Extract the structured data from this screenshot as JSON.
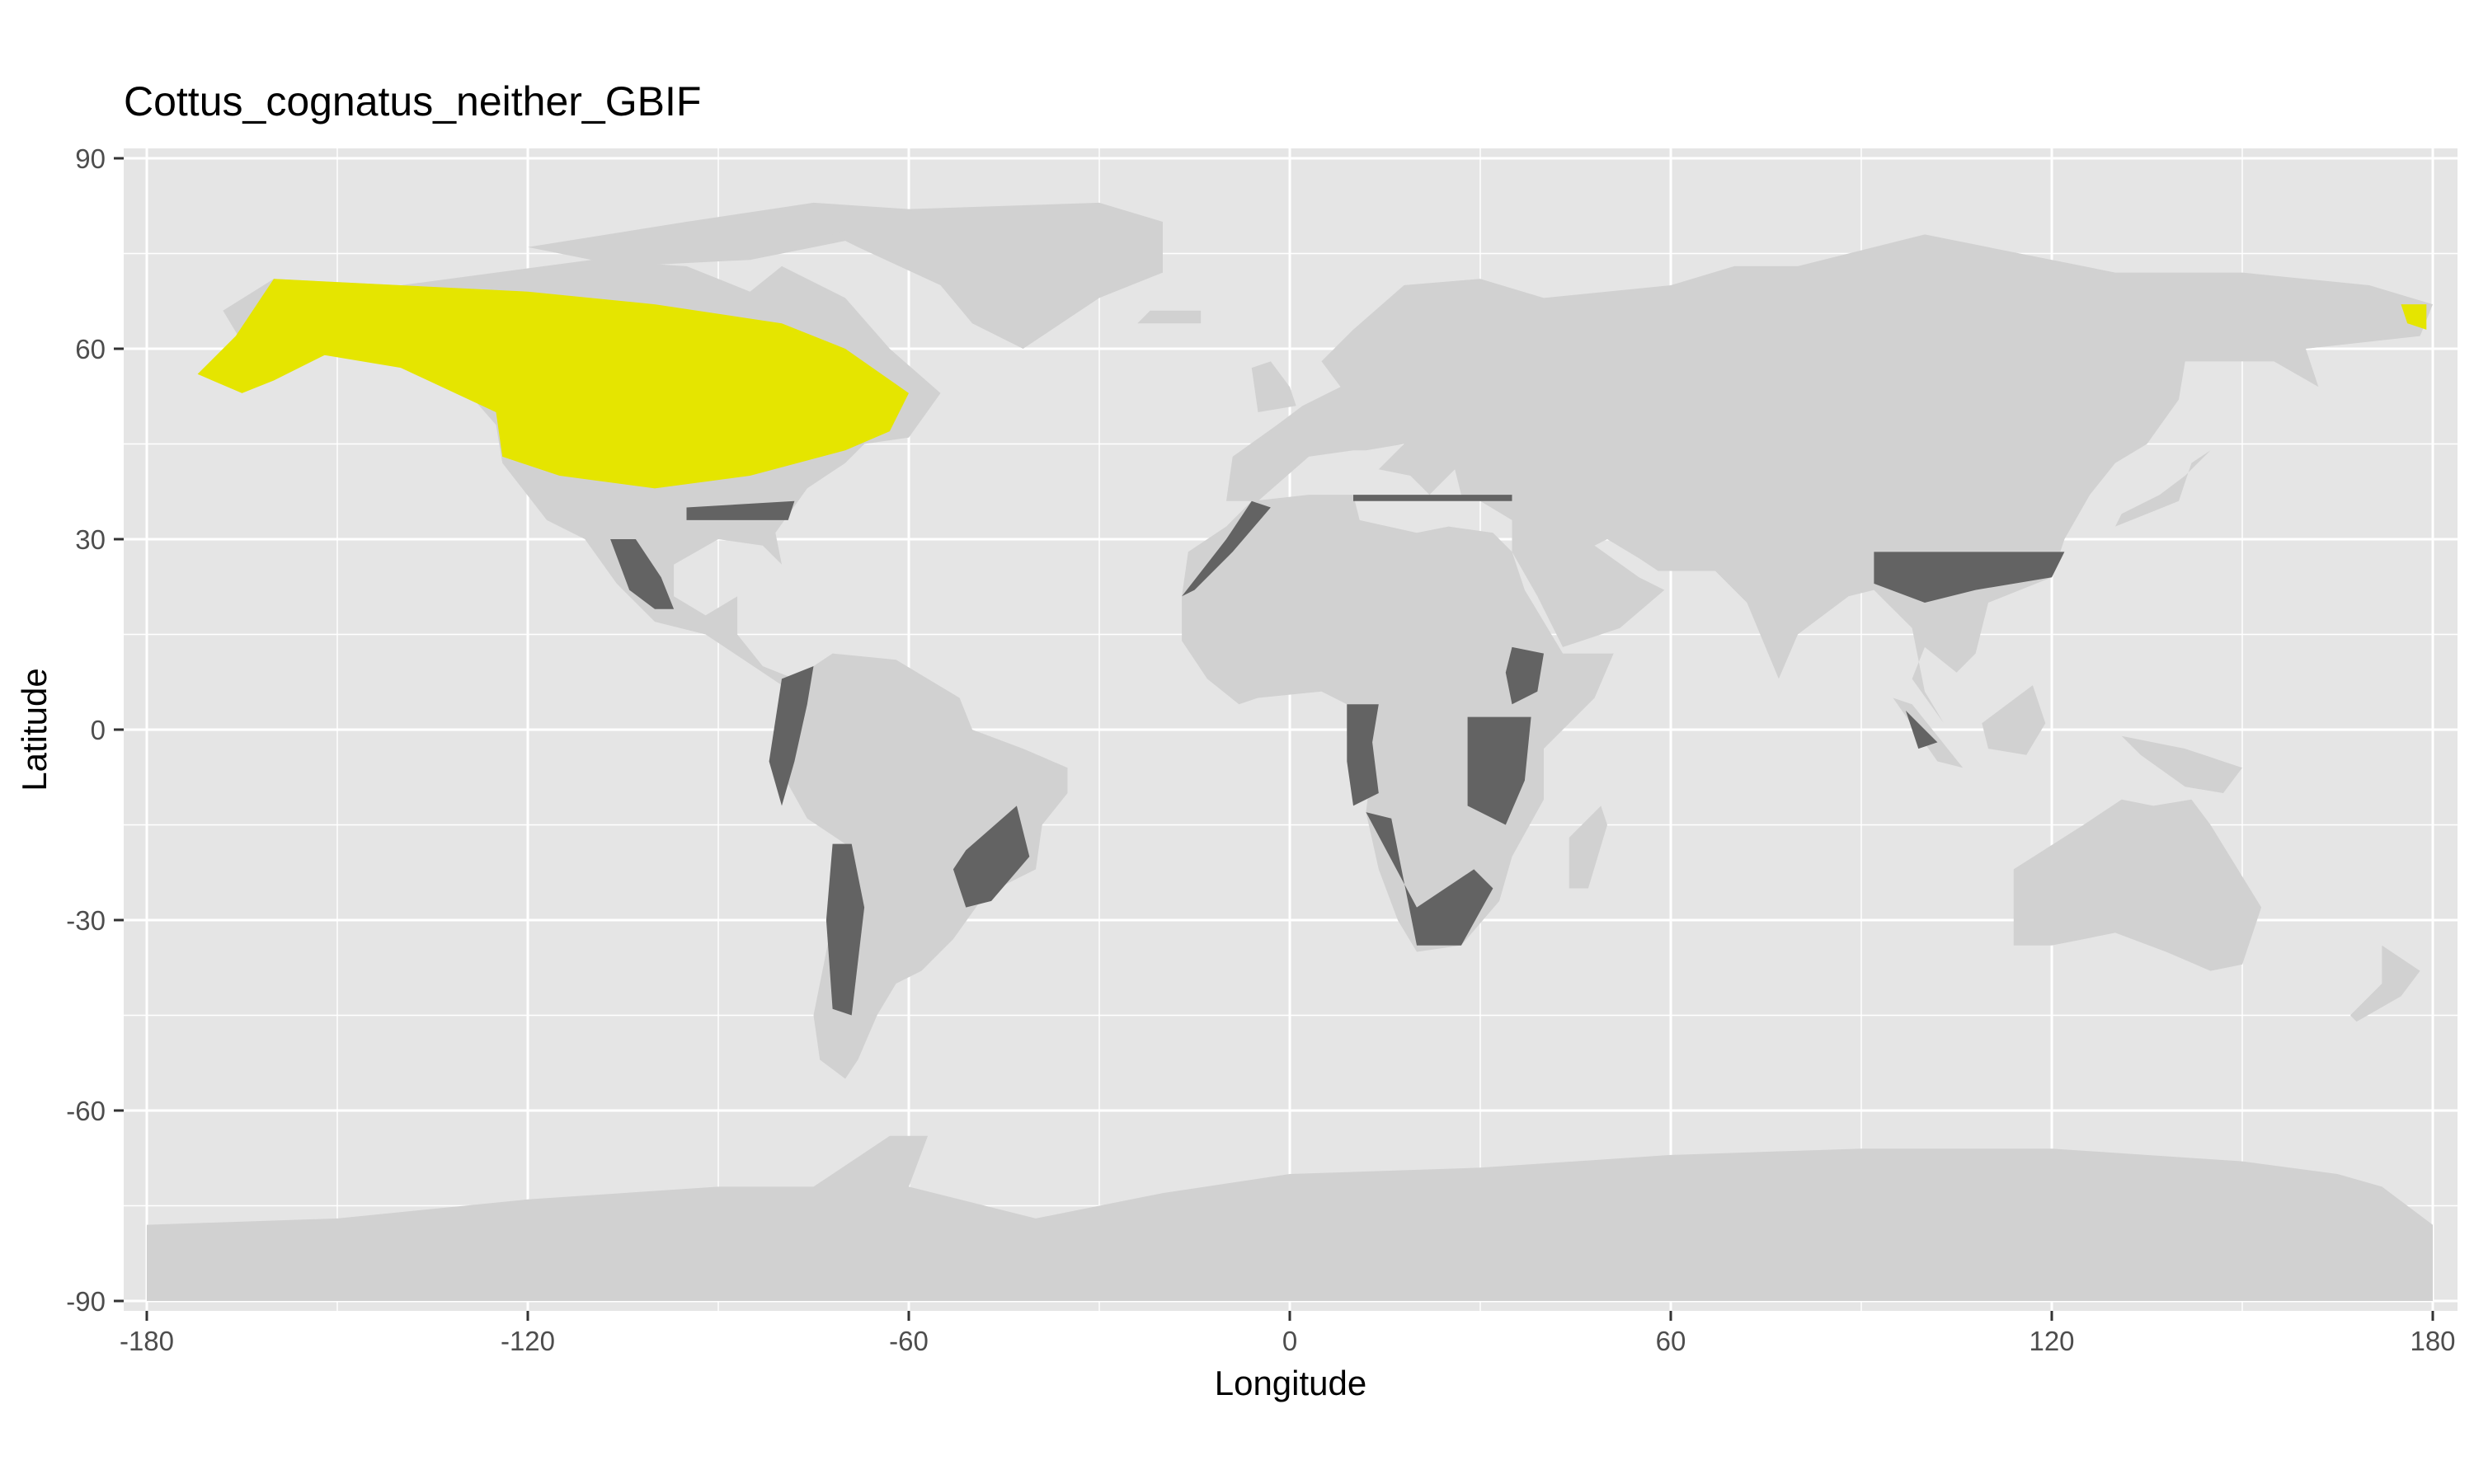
{
  "title": "Cottus_cognatus_neither_GBIF",
  "axes": {
    "x_label": "Longitude",
    "y_label": "Latitude",
    "x_ticks": [
      "-180",
      "-120",
      "-60",
      "0",
      "60",
      "120",
      "180"
    ],
    "y_ticks": [
      "90",
      "60",
      "30",
      "0",
      "-30",
      "-60",
      "-90"
    ],
    "x_range": [
      -180,
      180
    ],
    "y_range": [
      -90,
      90
    ],
    "grid": true
  },
  "colors": {
    "panel_background": "#e5e5e5",
    "grid_line": "#ffffff",
    "land": "#d1d1d1",
    "highlight_region": "#e5e500",
    "secondary_region": "#636363",
    "tick_text": "#4d4d4d"
  },
  "map_layers": {
    "land": "light gray landmasses of the world",
    "highlight": "yellow region over northern North America (Alaska, Canada) plus a small patch in far-east Siberia",
    "secondary": "dark gray patches in Central/South America, Africa, Mediterranean coast and Southeast Asia"
  }
}
